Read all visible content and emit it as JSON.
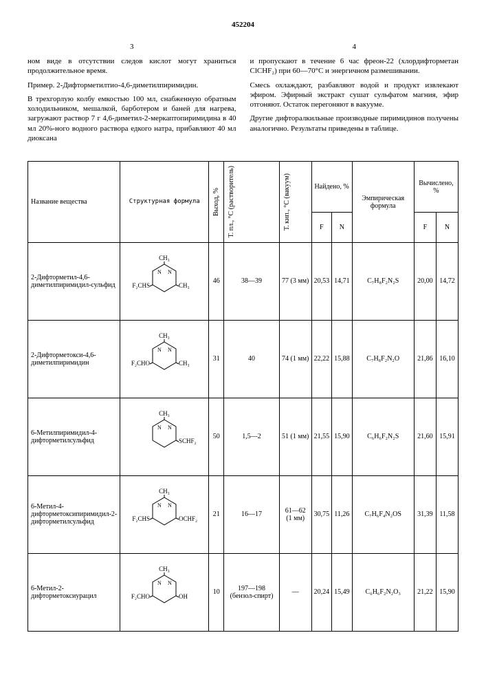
{
  "document_number": "452204",
  "left_col_number": "3",
  "right_col_number": "4",
  "paragraphs_left": [
    "ном виде в отсутствии следов кислот могут храниться продолжительное время.",
    "Пример. 2-Дифторметилтио-4,6-диметилпиримидин.",
    "В трехгорлую колбу емкостью 100 мл, снабженную обратным холодильником, мешалкой, барботером и баней для нагрева, загружают раствор 7 г 4,6-диметил-2-меркаптопиримидина в 40 мл 20%-ного водного раствора едкого натра, прибавляют 40 мл диоксана"
  ],
  "paragraphs_right": [
    "и пропускают в течение 6 час фреон-22 (хлордифторметан ClCHF₂) при 60—70°C и энергичном размешивании.",
    "Смесь охлаждают, разбавляют водой и продукт извлекают эфиром. Эфирный экстракт сушат сульфатом магния, эфир отгоняют. Остаток перегоняют в вакууме.",
    "Другие дифторалкильные производные пиримидинов получены аналогично. Результаты приведены в таблице."
  ],
  "table": {
    "headers": {
      "name": "Название вещества",
      "struct": "Структурная формула",
      "yield": "Выход, %",
      "mp": "Т. пл., °C (растворитель)",
      "bp": "Т. кип., °C (вакуум)",
      "found": "Найдено, %",
      "empirical": "Эмпирическая формула",
      "calc": "Вычислено, %",
      "F": "F",
      "N": "N"
    },
    "rows": [
      {
        "name": "2-Дифторметил-4,6-диметилпиримидил-сульфид",
        "struct_svg_labels": {
          "top": "CH₃",
          "right": "CH₃",
          "left": "F₂CHS",
          "bottom": ""
        },
        "yield": "46",
        "mp": "38—39",
        "bp": "77 (3 мм)",
        "found_F": "20,53",
        "found_N": "14,71",
        "formula": "C₇H₈F₂N₂S",
        "calc_F": "20,00",
        "calc_N": "14,72"
      },
      {
        "name": "2-Дифторметокси-4,6-диметилпиримидин",
        "struct_svg_labels": {
          "top": "CH₃",
          "right": "CH₃",
          "left": "F₂CHO",
          "bottom": ""
        },
        "yield": "31",
        "mp": "40",
        "bp": "74 (1 мм)",
        "found_F": "22,22",
        "found_N": "15,88",
        "formula": "C₇H₈F₂N₂O",
        "calc_F": "21,86",
        "calc_N": "16,10"
      },
      {
        "name": "6-Метилпиримидил-4-дифторметилсульфид",
        "struct_svg_labels": {
          "top": "CH₃",
          "right": "SCHF₂",
          "left": "",
          "bottom": ""
        },
        "yield": "50",
        "mp": "1,5—2",
        "bp": "51 (1 мм)",
        "found_F": "21,55",
        "found_N": "15,90",
        "formula": "C₆H₆F₂N₂S",
        "calc_F": "21,60",
        "calc_N": "15,91"
      },
      {
        "name": "6-Метил-4-дифторметоксипиримидил-2-дифторметилсульфид",
        "struct_svg_labels": {
          "top": "CH₃",
          "right": "OCHF₂",
          "left": "F₂CHS",
          "bottom": ""
        },
        "yield": "21",
        "mp": "16—17",
        "bp": "61—62 (1 мм)",
        "found_F": "30,75",
        "found_N": "11,26",
        "formula": "C₇H₆F₄N₂OS",
        "calc_F": "31,39",
        "calc_N": "11,58"
      },
      {
        "name": "6-Метил-2-дифторметоксиурацил",
        "struct_svg_labels": {
          "top": "CH₃",
          "right": "OH",
          "left": "F₂CHO",
          "bottom": ""
        },
        "yield": "10",
        "mp": "197—198 (бензол-спирт)",
        "bp": "—",
        "found_F": "20,24",
        "found_N": "15,49",
        "formula": "C₆H₆F₂N₂O₃",
        "calc_F": "21,22",
        "calc_N": "15,90"
      }
    ]
  }
}
